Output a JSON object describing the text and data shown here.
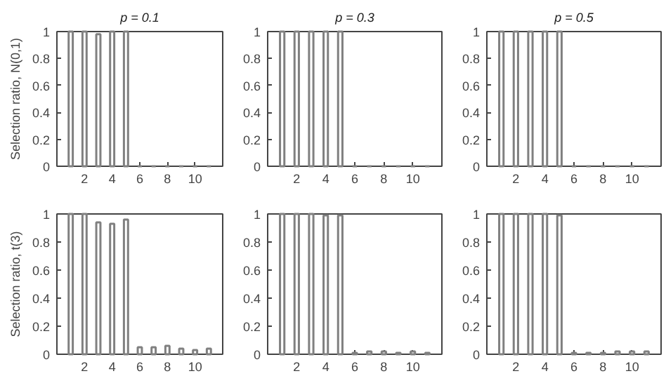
{
  "chart_data": [
    {
      "type": "bar",
      "title": "p = 0.1",
      "ylabel": "Selection ratio, N(0,1)",
      "x": [
        1,
        2,
        3,
        4,
        5,
        6,
        7,
        8,
        9,
        10,
        11
      ],
      "values": [
        1,
        1,
        0.98,
        1,
        1,
        0,
        0,
        0,
        0,
        0,
        0
      ],
      "color": "#808080",
      "xlim": [
        0,
        12
      ],
      "ylim": [
        0,
        1
      ],
      "xticks": [
        2,
        4,
        6,
        8,
        10
      ],
      "yticks": [
        0,
        0.2,
        0.4,
        0.6,
        0.8,
        1
      ],
      "grid": false
    },
    {
      "type": "bar",
      "title": "p = 0.3",
      "x": [
        1,
        2,
        3,
        4,
        5,
        6,
        7,
        8,
        9,
        10,
        11
      ],
      "values": [
        1,
        1,
        1,
        1,
        1,
        0,
        0,
        0,
        0,
        0,
        0
      ],
      "color": "#808080",
      "xlim": [
        0,
        12
      ],
      "ylim": [
        0,
        1
      ],
      "xticks": [
        2,
        4,
        6,
        8,
        10
      ],
      "yticks": [
        0,
        0.2,
        0.4,
        0.6,
        0.8,
        1
      ],
      "grid": false
    },
    {
      "type": "bar",
      "title": "p = 0.5",
      "x": [
        1,
        2,
        3,
        4,
        5,
        6,
        7,
        8,
        9,
        10,
        11
      ],
      "values": [
        1,
        1,
        1,
        1,
        1,
        0,
        0,
        0,
        0,
        0,
        0
      ],
      "color": "#808080",
      "xlim": [
        0,
        12
      ],
      "ylim": [
        0,
        1
      ],
      "xticks": [
        2,
        4,
        6,
        8,
        10
      ],
      "yticks": [
        0,
        0.2,
        0.4,
        0.6,
        0.8,
        1
      ],
      "grid": false
    },
    {
      "type": "bar",
      "ylabel": "Selection ratio, t(3)",
      "x": [
        1,
        2,
        3,
        4,
        5,
        6,
        7,
        8,
        9,
        10,
        11
      ],
      "values": [
        1,
        1,
        0.94,
        0.93,
        0.96,
        0.05,
        0.05,
        0.06,
        0.04,
        0.03,
        0.04
      ],
      "color": "#808080",
      "xlim": [
        0,
        12
      ],
      "ylim": [
        0,
        1
      ],
      "xticks": [
        2,
        4,
        6,
        8,
        10
      ],
      "yticks": [
        0,
        0.2,
        0.4,
        0.6,
        0.8,
        1
      ],
      "grid": false
    },
    {
      "type": "bar",
      "x": [
        1,
        2,
        3,
        4,
        5,
        6,
        7,
        8,
        9,
        10,
        11
      ],
      "values": [
        1,
        1,
        1,
        0.99,
        0.99,
        0.01,
        0.02,
        0.02,
        0.01,
        0.02,
        0.01
      ],
      "color": "#808080",
      "xlim": [
        0,
        12
      ],
      "ylim": [
        0,
        1
      ],
      "xticks": [
        2,
        4,
        6,
        8,
        10
      ],
      "yticks": [
        0,
        0.2,
        0.4,
        0.6,
        0.8,
        1
      ],
      "grid": false
    },
    {
      "type": "bar",
      "x": [
        1,
        2,
        3,
        4,
        5,
        6,
        7,
        8,
        9,
        10,
        11
      ],
      "values": [
        1,
        1,
        1,
        1,
        0.99,
        0.01,
        0.01,
        0.01,
        0.02,
        0.02,
        0.02
      ],
      "color": "#808080",
      "xlim": [
        0,
        12
      ],
      "ylim": [
        0,
        1
      ],
      "xticks": [
        2,
        4,
        6,
        8,
        10
      ],
      "yticks": [
        0,
        0.2,
        0.4,
        0.6,
        0.8,
        1
      ],
      "grid": false
    }
  ]
}
